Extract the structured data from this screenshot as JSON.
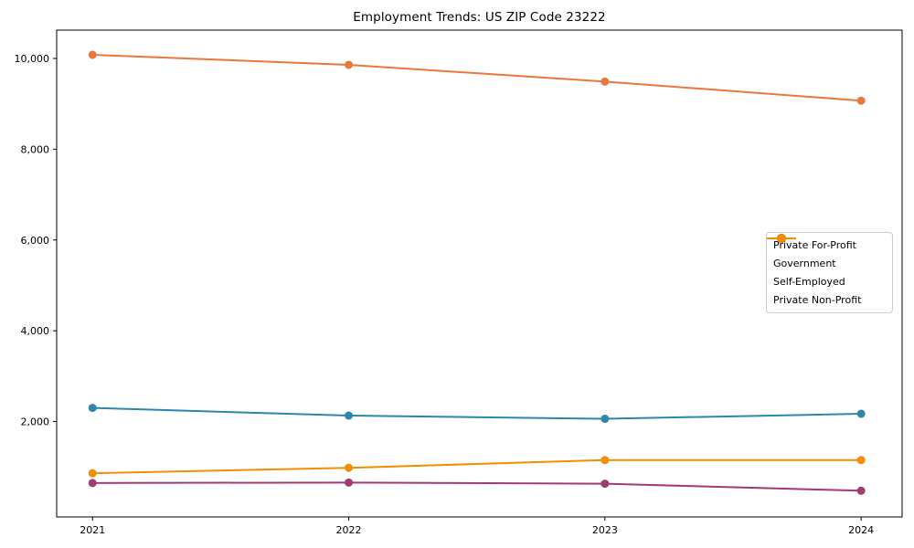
{
  "chart_data": {
    "type": "line",
    "title": "Employment Trends: US ZIP Code 23222",
    "xlabel": "",
    "ylabel": "",
    "categories": [
      "2021",
      "2022",
      "2023",
      "2024"
    ],
    "series": [
      {
        "name": "Private For-Profit",
        "color": "#E8783C",
        "values": [
          10080,
          9860,
          9490,
          9070
        ]
      },
      {
        "name": "Government",
        "color": "#2E86AB",
        "values": [
          2300,
          2130,
          2060,
          2170
        ]
      },
      {
        "name": "Self-Employed",
        "color": "#A23B72",
        "values": [
          645,
          655,
          630,
          475
        ]
      },
      {
        "name": "Private Non-Profit",
        "color": "#F18F01",
        "values": [
          860,
          980,
          1150,
          1150
        ]
      }
    ],
    "yticks": [
      {
        "value": 2000,
        "label": "2,000"
      },
      {
        "value": 4000,
        "label": "4,000"
      },
      {
        "value": 6000,
        "label": "6,000"
      },
      {
        "value": 8000,
        "label": "8,000"
      },
      {
        "value": 10000,
        "label": "10,000"
      }
    ],
    "xlim": [
      2020.86,
      2024.16
    ],
    "ylim": [
      -103,
      10624
    ],
    "grid": false,
    "legend_position": "center right",
    "marker": "circle",
    "axis_color": "#000000"
  }
}
